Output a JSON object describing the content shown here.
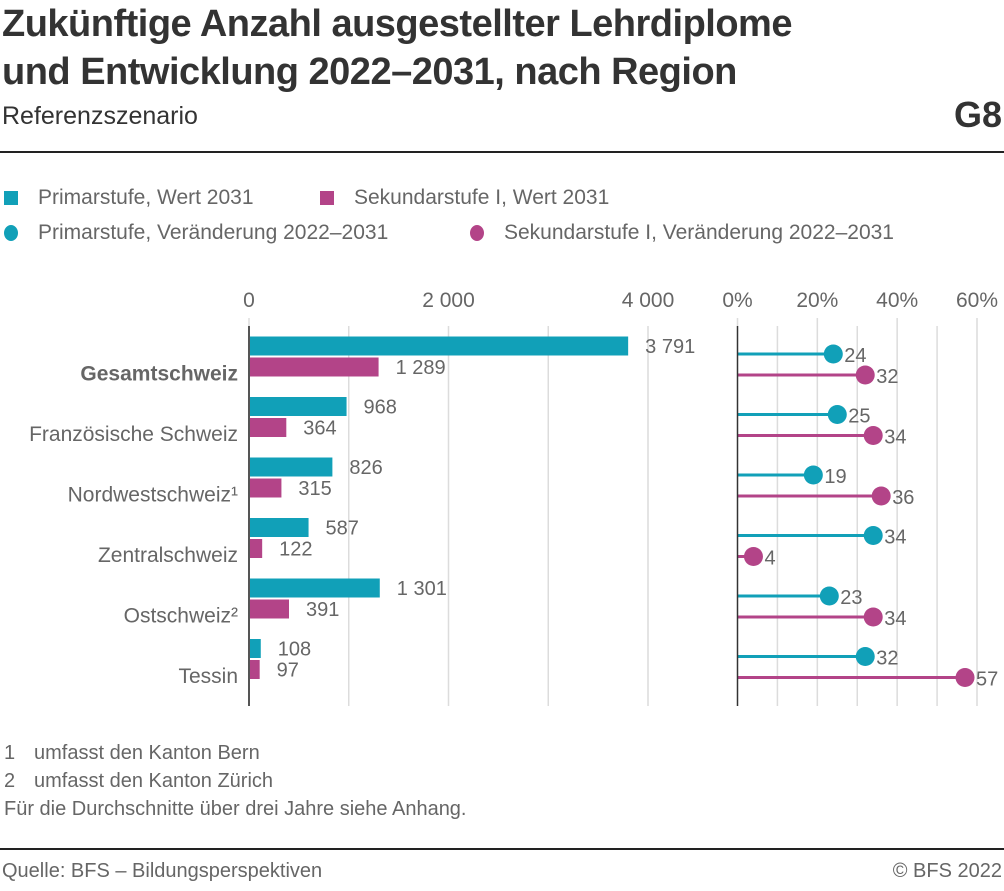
{
  "header": {
    "title_line1": "Zukünftige Anzahl ausgestellter Lehrdiplome",
    "title_line2": "und Entwicklung 2022–2031, nach Region",
    "subtitle": "Referenzszenario",
    "graphic_number": "G8"
  },
  "legend": [
    {
      "label": "Primarstufe, Wert 2031",
      "shape": "square",
      "color": "#11a0b8"
    },
    {
      "label": "Sekundarstufe I, Wert 2031",
      "shape": "square",
      "color": "#b34488"
    },
    {
      "label": "Primarstufe, Veränderung 2022–2031",
      "shape": "circle",
      "color": "#11a0b8"
    },
    {
      "label": "Sekundarstufe I, Veränderung 2022–2031",
      "shape": "circle",
      "color": "#b34488"
    }
  ],
  "chart_data": [
    {
      "type": "bar",
      "orientation": "horizontal",
      "title": "Wert 2031",
      "categories": [
        "Gesamtschweiz",
        "Französische Schweiz",
        "Nordwestschweiz¹",
        "Zentralschweiz",
        "Ostschweiz²",
        "Tessin"
      ],
      "category_bold": [
        true,
        false,
        false,
        false,
        false,
        false
      ],
      "series": [
        {
          "name": "Primarstufe, Wert 2031",
          "color": "#11a0b8",
          "values": [
            3791,
            968,
            826,
            587,
            1301,
            108
          ],
          "labels": [
            "3 791",
            "968",
            "826",
            "587",
            "1 301",
            "108"
          ]
        },
        {
          "name": "Sekundarstufe I, Wert 2031",
          "color": "#b34488",
          "values": [
            1289,
            364,
            315,
            122,
            391,
            97
          ],
          "labels": [
            "1 289",
            "364",
            "315",
            "122",
            "391",
            "97"
          ]
        }
      ],
      "xlim": [
        0,
        4500
      ],
      "xticks": [
        0,
        2000,
        4000
      ],
      "xtick_labels": [
        "0",
        "2 000",
        "4 000"
      ],
      "grid_step": 1000,
      "axis_position": "top",
      "grid": true
    },
    {
      "type": "scatter",
      "style": "lollipop",
      "title": "Veränderung 2022–2031",
      "categories": [
        "Gesamtschweiz",
        "Französische Schweiz",
        "Nordwestschweiz¹",
        "Zentralschweiz",
        "Ostschweiz²",
        "Tessin"
      ],
      "series": [
        {
          "name": "Primarstufe, Veränderung 2022–2031",
          "color": "#11a0b8",
          "values": [
            24,
            25,
            19,
            34,
            23,
            32
          ]
        },
        {
          "name": "Sekundarstufe I, Veränderung 2022–2031",
          "color": "#b34488",
          "values": [
            32,
            34,
            36,
            4,
            34,
            57
          ]
        }
      ],
      "unit": "%",
      "xlim": [
        0,
        65
      ],
      "xticks": [
        0,
        20,
        40,
        60
      ],
      "xtick_labels": [
        "0%",
        "20%",
        "40%",
        "60%"
      ],
      "grid_step": 10,
      "axis_position": "top",
      "grid": true
    }
  ],
  "footnotes": [
    {
      "num": "1",
      "text": "umfasst den Kanton Bern"
    },
    {
      "num": "2",
      "text": "umfasst den Kanton Zürich"
    }
  ],
  "note": "Für die Durchschnitte über drei Jahre siehe Anhang.",
  "footer": {
    "source": "Quelle: BFS – Bildungsperspektiven",
    "copyright": "© BFS 2022"
  }
}
